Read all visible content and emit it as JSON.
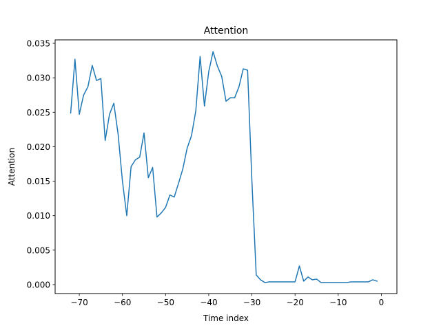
{
  "chart_data": {
    "type": "line",
    "title": "Attention",
    "xlabel": "Time index",
    "ylabel": "Attention",
    "xlim": [
      -75.6,
      3.6
    ],
    "ylim": [
      -0.0013,
      0.0355
    ],
    "xticks": [
      -70,
      -60,
      -50,
      -40,
      -30,
      -20,
      -10,
      0
    ],
    "xtick_labels": [
      "−70",
      "−60",
      "−50",
      "−40",
      "−30",
      "−20",
      "−10",
      "0"
    ],
    "yticks": [
      0.0,
      0.005,
      0.01,
      0.015,
      0.02,
      0.025,
      0.03,
      0.035
    ],
    "ytick_labels": [
      "0.000",
      "0.005",
      "0.010",
      "0.015",
      "0.020",
      "0.025",
      "0.030",
      "0.035"
    ],
    "grid": false,
    "legend": "none",
    "series": [
      {
        "color": "#1f77b4",
        "x": [
          -72,
          -71,
          -70,
          -69,
          -68,
          -67,
          -66,
          -65,
          -64,
          -63,
          -62,
          -61,
          -60,
          -59,
          -58,
          -57,
          -56,
          -55,
          -54,
          -53,
          -52,
          -51,
          -50,
          -49,
          -48,
          -47,
          -46,
          -45,
          -44,
          -43,
          -42,
          -41,
          -40,
          -39,
          -38,
          -37,
          -36,
          -35,
          -34,
          -33,
          -32,
          -31,
          -30,
          -29,
          -28,
          -27,
          -26,
          -25,
          -24,
          -23,
          -22,
          -21,
          -20,
          -19,
          -18,
          -17,
          -16,
          -15,
          -14,
          -13,
          -12,
          -11,
          -10,
          -9,
          -8,
          -7,
          -6,
          -5,
          -4,
          -3,
          -2,
          -1
        ],
        "y": [
          0.0249,
          0.0327,
          0.0247,
          0.0275,
          0.0287,
          0.0318,
          0.0296,
          0.0299,
          0.0209,
          0.0247,
          0.0263,
          0.0218,
          0.015,
          0.01,
          0.0171,
          0.0181,
          0.0185,
          0.022,
          0.0155,
          0.017,
          0.0098,
          0.0104,
          0.0112,
          0.013,
          0.0127,
          0.0147,
          0.0168,
          0.0198,
          0.0216,
          0.0252,
          0.0331,
          0.0259,
          0.0309,
          0.0338,
          0.0317,
          0.0302,
          0.0266,
          0.0271,
          0.0271,
          0.0287,
          0.0313,
          0.0311,
          0.015,
          0.0014,
          0.0007,
          0.0003,
          0.0004,
          0.0004,
          0.0004,
          0.0004,
          0.0004,
          0.0004,
          0.0004,
          0.0027,
          0.0005,
          0.0011,
          0.0007,
          0.0008,
          0.0003,
          0.0003,
          0.0003,
          0.0003,
          0.0003,
          0.0003,
          0.0003,
          0.0004,
          0.0004,
          0.0004,
          0.0004,
          0.0004,
          0.0007,
          0.0005
        ]
      }
    ]
  }
}
